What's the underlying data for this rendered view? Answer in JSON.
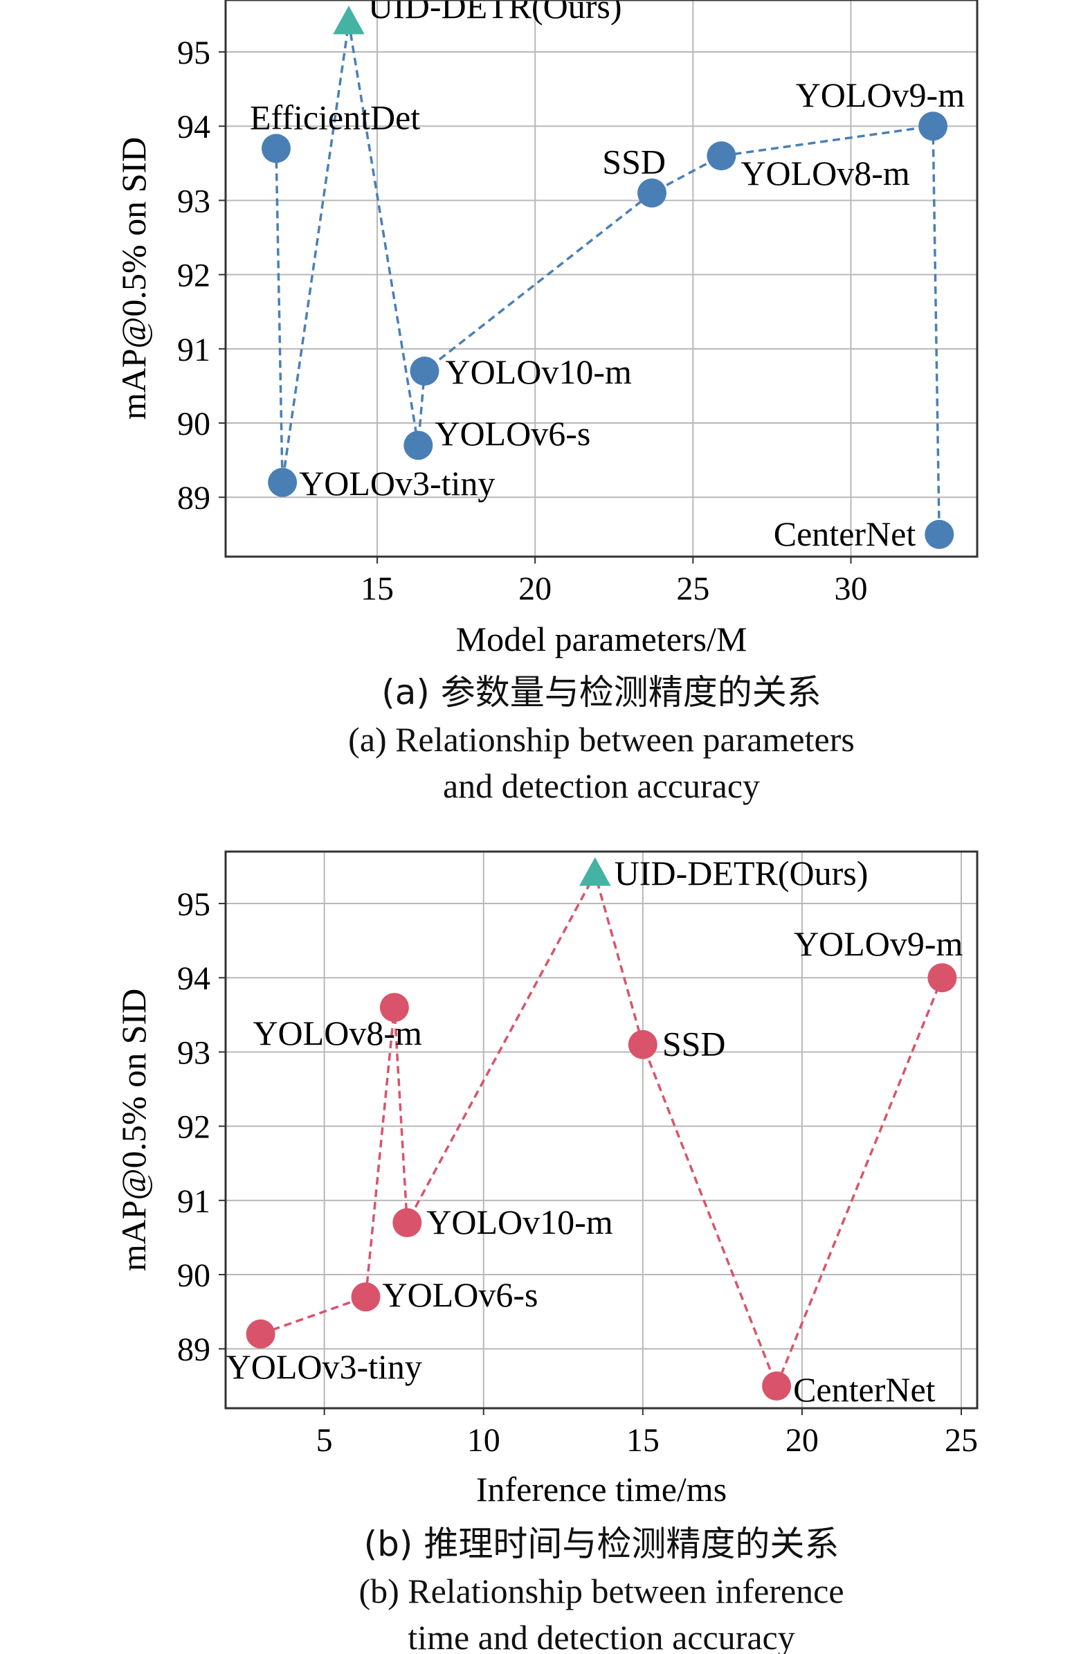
{
  "chart_data": [
    {
      "type": "scatter",
      "xlabel": "Model parameters/M",
      "ylabel": "mAP@0.5% on SID",
      "xlim": [
        10.2,
        34.0
      ],
      "ylim": [
        88.2,
        95.7
      ],
      "xticks": [
        15,
        20,
        25,
        30
      ],
      "yticks": [
        89,
        90,
        91,
        92,
        93,
        94,
        95
      ],
      "grid": true,
      "color": "#4a7fb5",
      "ours_color": "#45b3a3",
      "caption_cn": "(a) 参数量与检测精度的关系",
      "caption_en_1": "(a) Relationship between parameters",
      "caption_en_2": "and detection accuracy",
      "points": [
        {
          "name": "UID-DETR(Ours)",
          "x": 14.1,
          "y": 95.4,
          "ours": true
        },
        {
          "name": "EfficientDet",
          "x": 11.8,
          "y": 93.7
        },
        {
          "name": "YOLOv3-tiny",
          "x": 12.0,
          "y": 89.2
        },
        {
          "name": "YOLOv6-s",
          "x": 16.3,
          "y": 89.7
        },
        {
          "name": "YOLOv10-m",
          "x": 16.5,
          "y": 90.7
        },
        {
          "name": "SSD",
          "x": 23.7,
          "y": 93.1
        },
        {
          "name": "YOLOv8-m",
          "x": 25.9,
          "y": 93.6
        },
        {
          "name": "YOLOv9-m",
          "x": 32.6,
          "y": 94.0
        },
        {
          "name": "CenterNet",
          "x": 32.8,
          "y": 88.5
        }
      ],
      "line_order": [
        "EfficientDet",
        "YOLOv3-tiny",
        "UID-DETR(Ours)",
        "YOLOv6-s",
        "YOLOv10-m",
        "SSD",
        "YOLOv8-m",
        "YOLOv9-m",
        "CenterNet"
      ]
    },
    {
      "type": "scatter",
      "xlabel": "Inference time/ms",
      "ylabel": "mAP@0.5% on SID",
      "xlim": [
        1.9,
        25.5
      ],
      "ylim": [
        88.2,
        95.7
      ],
      "xticks": [
        5,
        10,
        15,
        20,
        25
      ],
      "yticks": [
        89,
        90,
        91,
        92,
        93,
        94,
        95
      ],
      "grid": true,
      "color": "#d9546a",
      "ours_color": "#45b3a3",
      "caption_cn": "(b) 推理时间与检测精度的关系",
      "caption_en_1": "(b) Relationship between inference",
      "caption_en_2": "time and detection accuracy",
      "points": [
        {
          "name": "YOLOv3-tiny",
          "x": 3.0,
          "y": 89.2
        },
        {
          "name": "YOLOv6-s",
          "x": 6.3,
          "y": 89.7
        },
        {
          "name": "YOLOv8-m",
          "x": 7.2,
          "y": 93.6
        },
        {
          "name": "YOLOv10-m",
          "x": 7.6,
          "y": 90.7
        },
        {
          "name": "UID-DETR(Ours)",
          "x": 13.5,
          "y": 95.4,
          "ours": true
        },
        {
          "name": "SSD",
          "x": 15.0,
          "y": 93.1
        },
        {
          "name": "CenterNet",
          "x": 19.2,
          "y": 88.5
        },
        {
          "name": "YOLOv9-m",
          "x": 24.4,
          "y": 94.0
        }
      ],
      "line_order": [
        "YOLOv3-tiny",
        "YOLOv6-s",
        "YOLOv8-m",
        "YOLOv10-m",
        "UID-DETR(Ours)",
        "SSD",
        "CenterNet",
        "YOLOv9-m"
      ]
    }
  ]
}
